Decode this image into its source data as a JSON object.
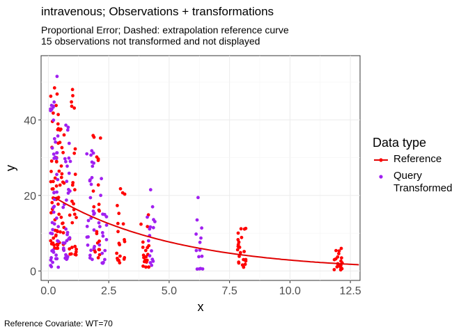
{
  "chart_data": {
    "type": "scatter",
    "title": "intravenous; Observations + transformations",
    "subtitle_lines": [
      "Proportional Error; Dashed: extrapolation reference curve",
      "15 observations not transformed and not displayed"
    ],
    "xlabel": "x",
    "ylabel": "y",
    "xlim": [
      -0.3,
      12.9
    ],
    "ylim": [
      -2.5,
      57
    ],
    "x_ticks": [
      0,
      2.5,
      5,
      7.5,
      10,
      12.5
    ],
    "x_tick_labels": [
      "0.0",
      "2.5",
      "5.0",
      "7.5",
      "10.0",
      "12.5"
    ],
    "y_ticks": [
      0,
      20,
      40
    ],
    "y_tick_labels": [
      "0",
      "20",
      "40"
    ],
    "grid": true,
    "legend": {
      "title": "Data type",
      "position": "right",
      "entries": [
        "Reference",
        "Query\nTransformed"
      ]
    },
    "caption": "Reference Covariate: WT=70",
    "colors": {
      "reference": "#ff0000",
      "query": "#a020f0",
      "curve": "#e00000"
    },
    "reference_curve": {
      "x0": 0.25,
      "y0": 19.5,
      "rate_per_unit_x": 0.196,
      "x_end": 12.9
    },
    "reference_clusters": [
      {
        "x": 0.25,
        "count": 42,
        "y_low": 6,
        "y_high": 49
      },
      {
        "x": 0.5,
        "count": 30,
        "y_low": 5,
        "y_high": 40
      },
      {
        "x": 1.0,
        "count": 28,
        "y_low": 4,
        "y_high": 49
      },
      {
        "x": 2.0,
        "count": 22,
        "y_low": 3,
        "y_high": 36
      },
      {
        "x": 3.0,
        "count": 20,
        "y_low": 2,
        "y_high": 23
      },
      {
        "x": 4.0,
        "count": 20,
        "y_low": 1,
        "y_high": 15
      },
      {
        "x": 8.0,
        "count": 22,
        "y_low": 0.5,
        "y_high": 15.5
      },
      {
        "x": 12.0,
        "count": 22,
        "y_low": 0.3,
        "y_high": 6
      }
    ],
    "query_clusters": [
      {
        "x": 0.25,
        "count": 50,
        "y_low": 1,
        "y_high": 55
      },
      {
        "x": 0.75,
        "count": 34,
        "y_low": 3,
        "y_high": 40
      },
      {
        "x": 1.75,
        "count": 28,
        "y_low": 3,
        "y_high": 34
      },
      {
        "x": 2.25,
        "count": 18,
        "y_low": 2,
        "y_high": 25
      },
      {
        "x": 4.25,
        "count": 16,
        "y_low": 1,
        "y_high": 23.5
      },
      {
        "x": 6.25,
        "count": 14,
        "y_low": 0.5,
        "y_high": 19.5
      }
    ]
  }
}
